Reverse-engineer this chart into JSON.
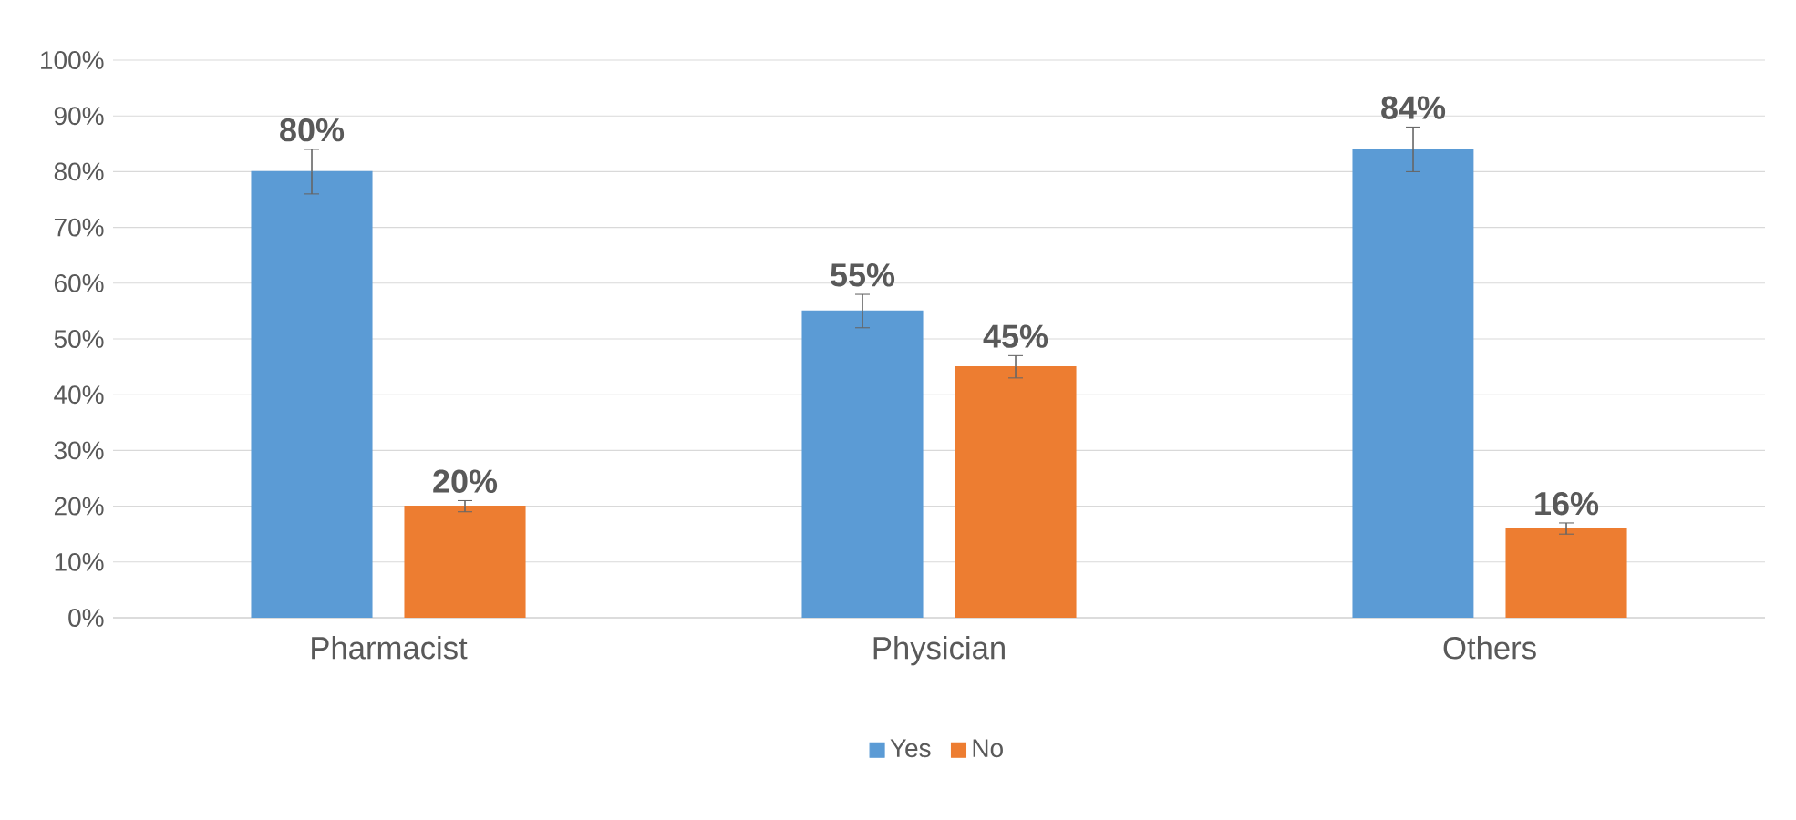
{
  "chart_data": {
    "type": "bar",
    "categories": [
      "Pharmacist",
      "Physician",
      "Others"
    ],
    "series": [
      {
        "name": "Yes",
        "color": "#5b9bd5",
        "values": [
          80,
          55,
          84
        ],
        "errors": [
          4,
          3,
          4
        ],
        "value_labels": [
          "80%",
          "55%",
          "84%"
        ]
      },
      {
        "name": "No",
        "color": "#ed7d31",
        "values": [
          20,
          45,
          16
        ],
        "errors": [
          1,
          2,
          1
        ],
        "value_labels": [
          "20%",
          "45%",
          "16%"
        ]
      }
    ],
    "ylim": [
      0,
      100
    ],
    "yticks": [
      {
        "value": 0,
        "label": "0%"
      },
      {
        "value": 10,
        "label": "10%"
      },
      {
        "value": 20,
        "label": "20%"
      },
      {
        "value": 30,
        "label": "30%"
      },
      {
        "value": 40,
        "label": "40%"
      },
      {
        "value": 50,
        "label": "50%"
      },
      {
        "value": 60,
        "label": "60%"
      },
      {
        "value": 70,
        "label": "70%"
      },
      {
        "value": 80,
        "label": "80%"
      },
      {
        "value": 90,
        "label": "90%"
      },
      {
        "value": 100,
        "label": "100%"
      }
    ],
    "grid": "y",
    "legend": "bottom"
  }
}
